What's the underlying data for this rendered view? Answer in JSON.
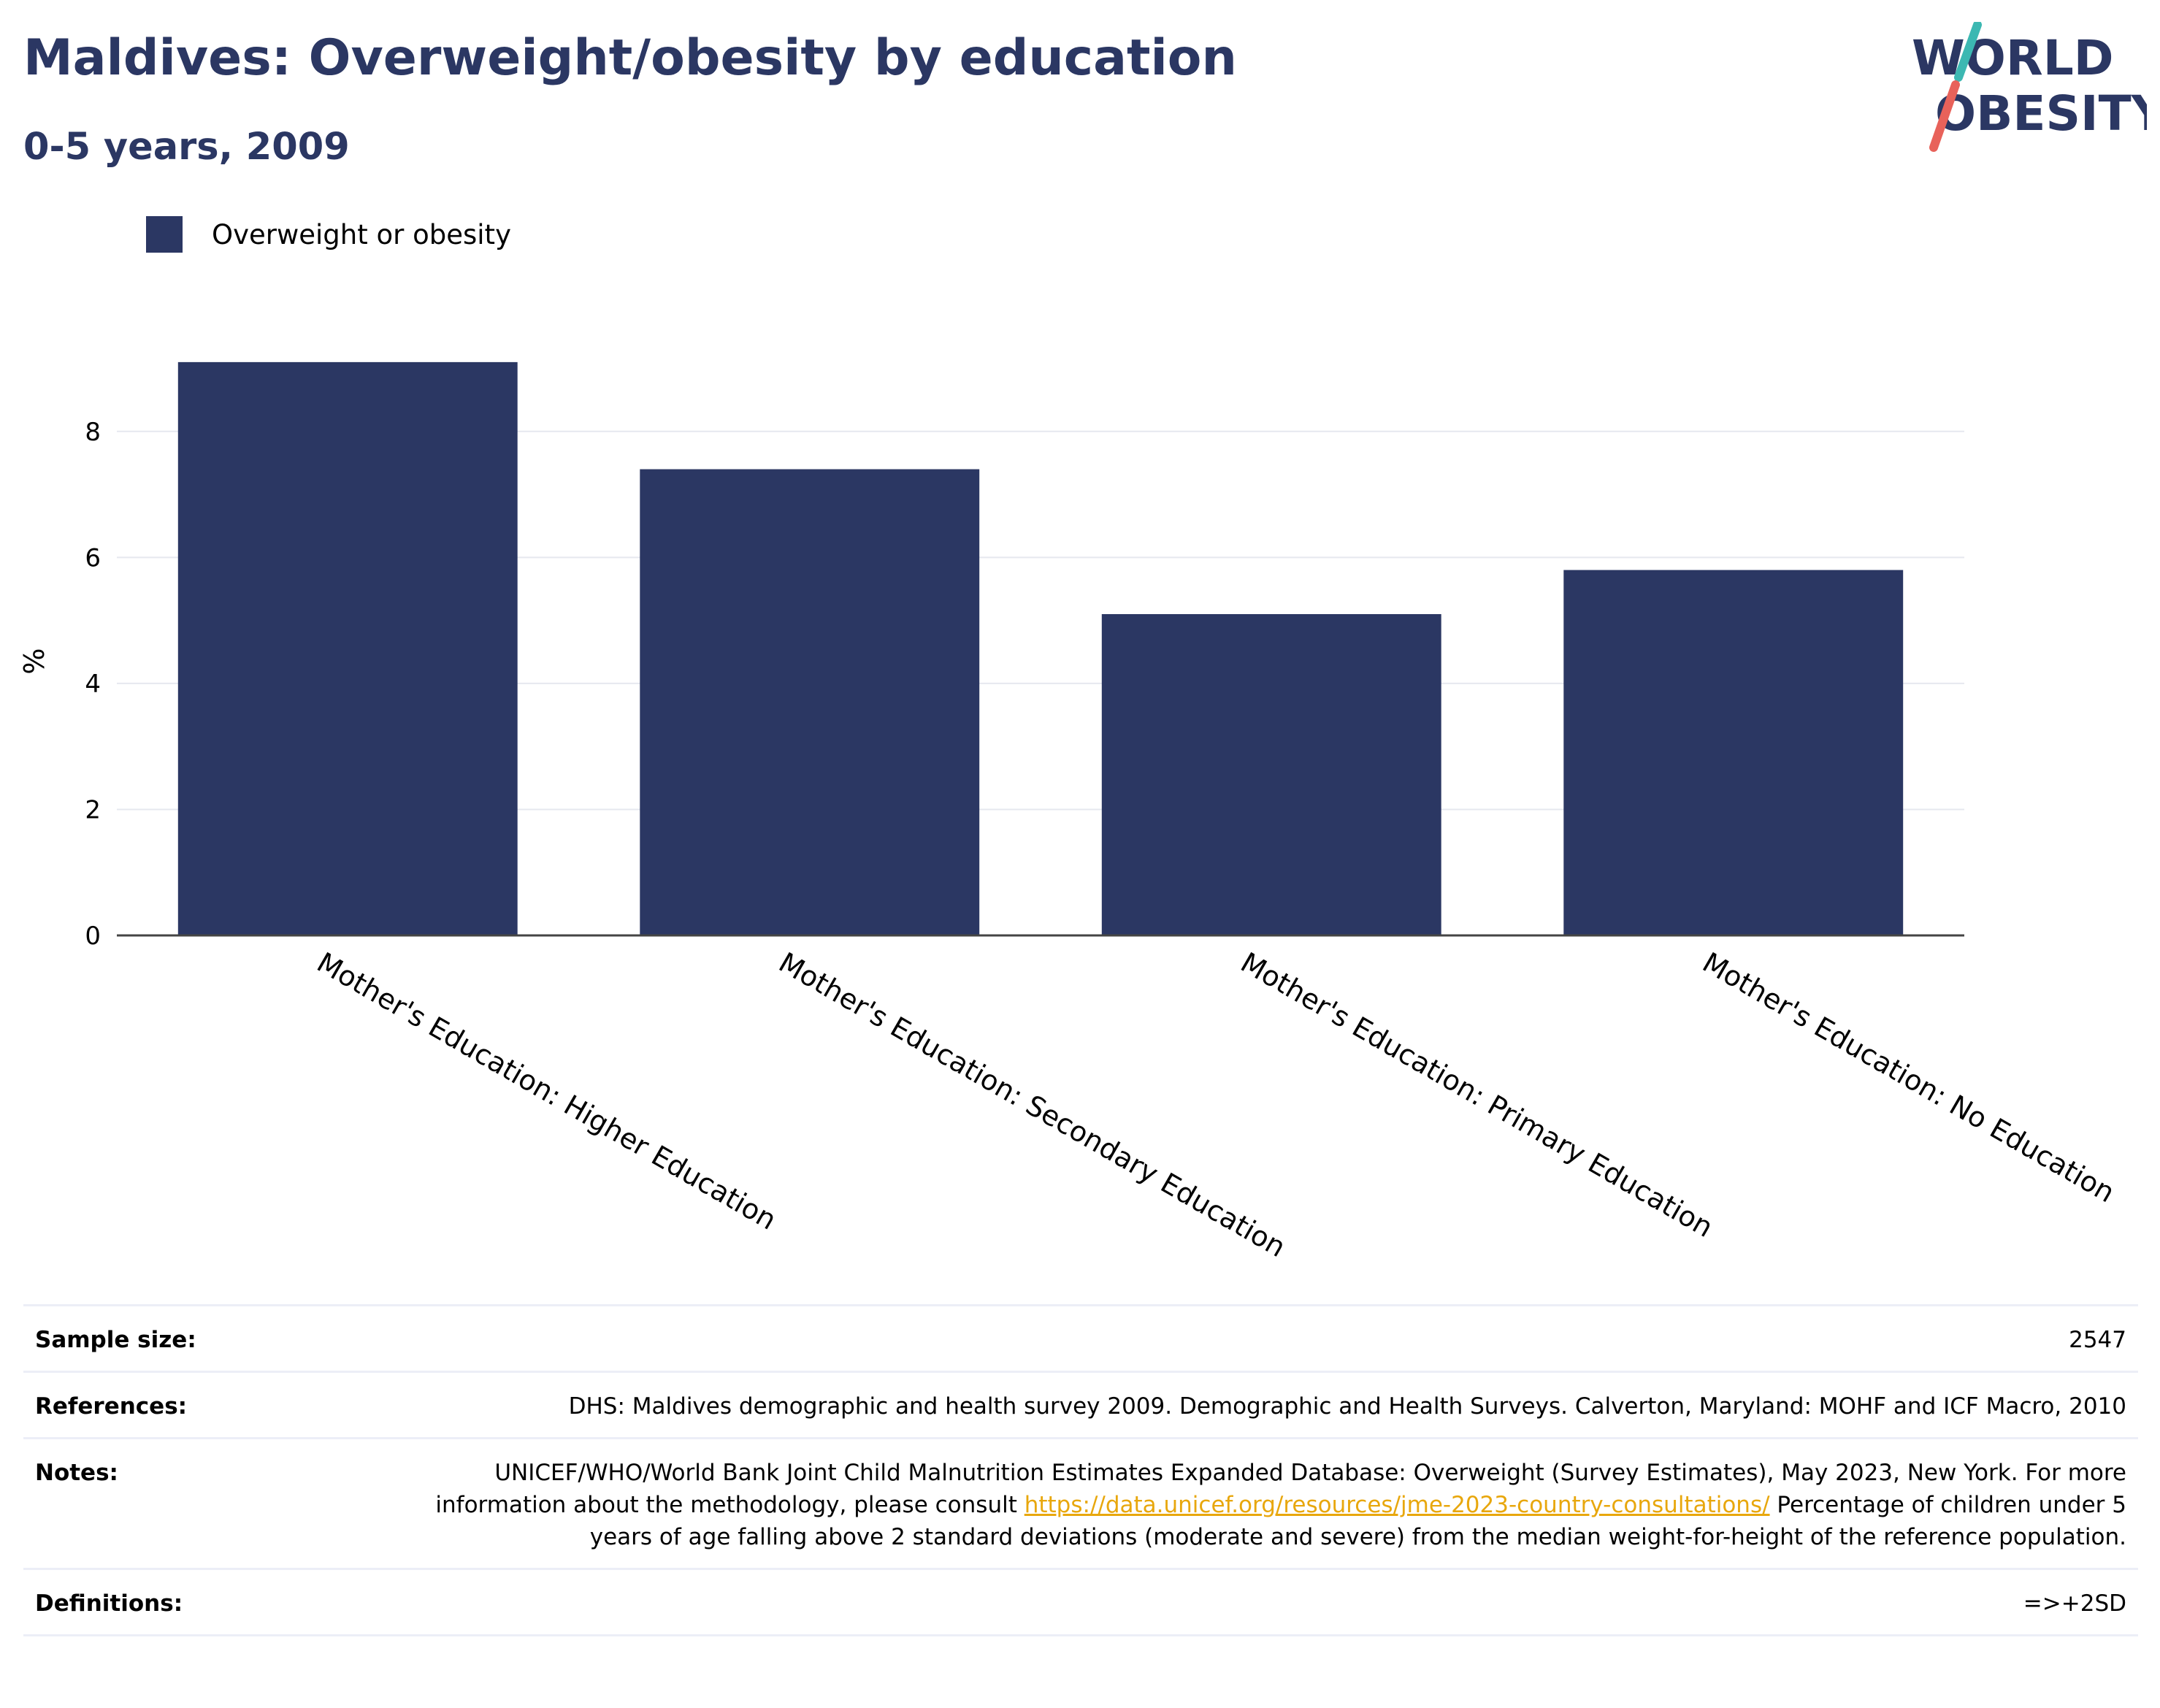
{
  "header": {
    "title": "Maldives: Overweight/obesity by education",
    "subtitle": "0-5 years, 2009"
  },
  "logo": {
    "line1": "WORLD",
    "line2": "OBESITY",
    "colors": {
      "text": "#2b3763",
      "slash_top": "#3cb8b2",
      "slash_bottom": "#e8625a"
    }
  },
  "legend": {
    "label": "Overweight or obesity",
    "color": "#2b3763"
  },
  "chart_data": {
    "type": "bar",
    "categories": [
      "Mother's Education: Higher Education",
      "Mother's Education: Secondary Education",
      "Mother's Education: Primary Education",
      "Mother's Education: No Education"
    ],
    "series": [
      {
        "name": "Overweight or obesity",
        "values": [
          9.1,
          7.4,
          5.1,
          5.8
        ],
        "color": "#2b3763"
      }
    ],
    "ylabel": "%",
    "yticks": [
      0,
      2,
      4,
      6,
      8
    ],
    "ylim": [
      0,
      9.4
    ],
    "grid": true,
    "legend_position": "top-left"
  },
  "meta": {
    "sample_size_label": "Sample size:",
    "sample_size_value": "2547",
    "references_label": "References:",
    "references_value": "DHS: Maldives demographic and health survey 2009. Demographic and Health Surveys. Calverton, Maryland: MOHF and ICF Macro, 2010",
    "notes_label": "Notes:",
    "notes_text_1": "UNICEF/WHO/World Bank Joint Child Malnutrition Estimates Expanded Database: Overweight (Survey Estimates), May 2023, New York. For more information about the methodology, please consult ",
    "notes_link": "https://data.unicef.org/resources/jme-2023-country-consultations/",
    "notes_text_2": " Percentage of children under 5 years of age falling above 2 standard deviations (moderate and severe) from the median weight-for-height of the reference population.",
    "definitions_label": "Definitions:",
    "definitions_value": "=>+2SD"
  }
}
